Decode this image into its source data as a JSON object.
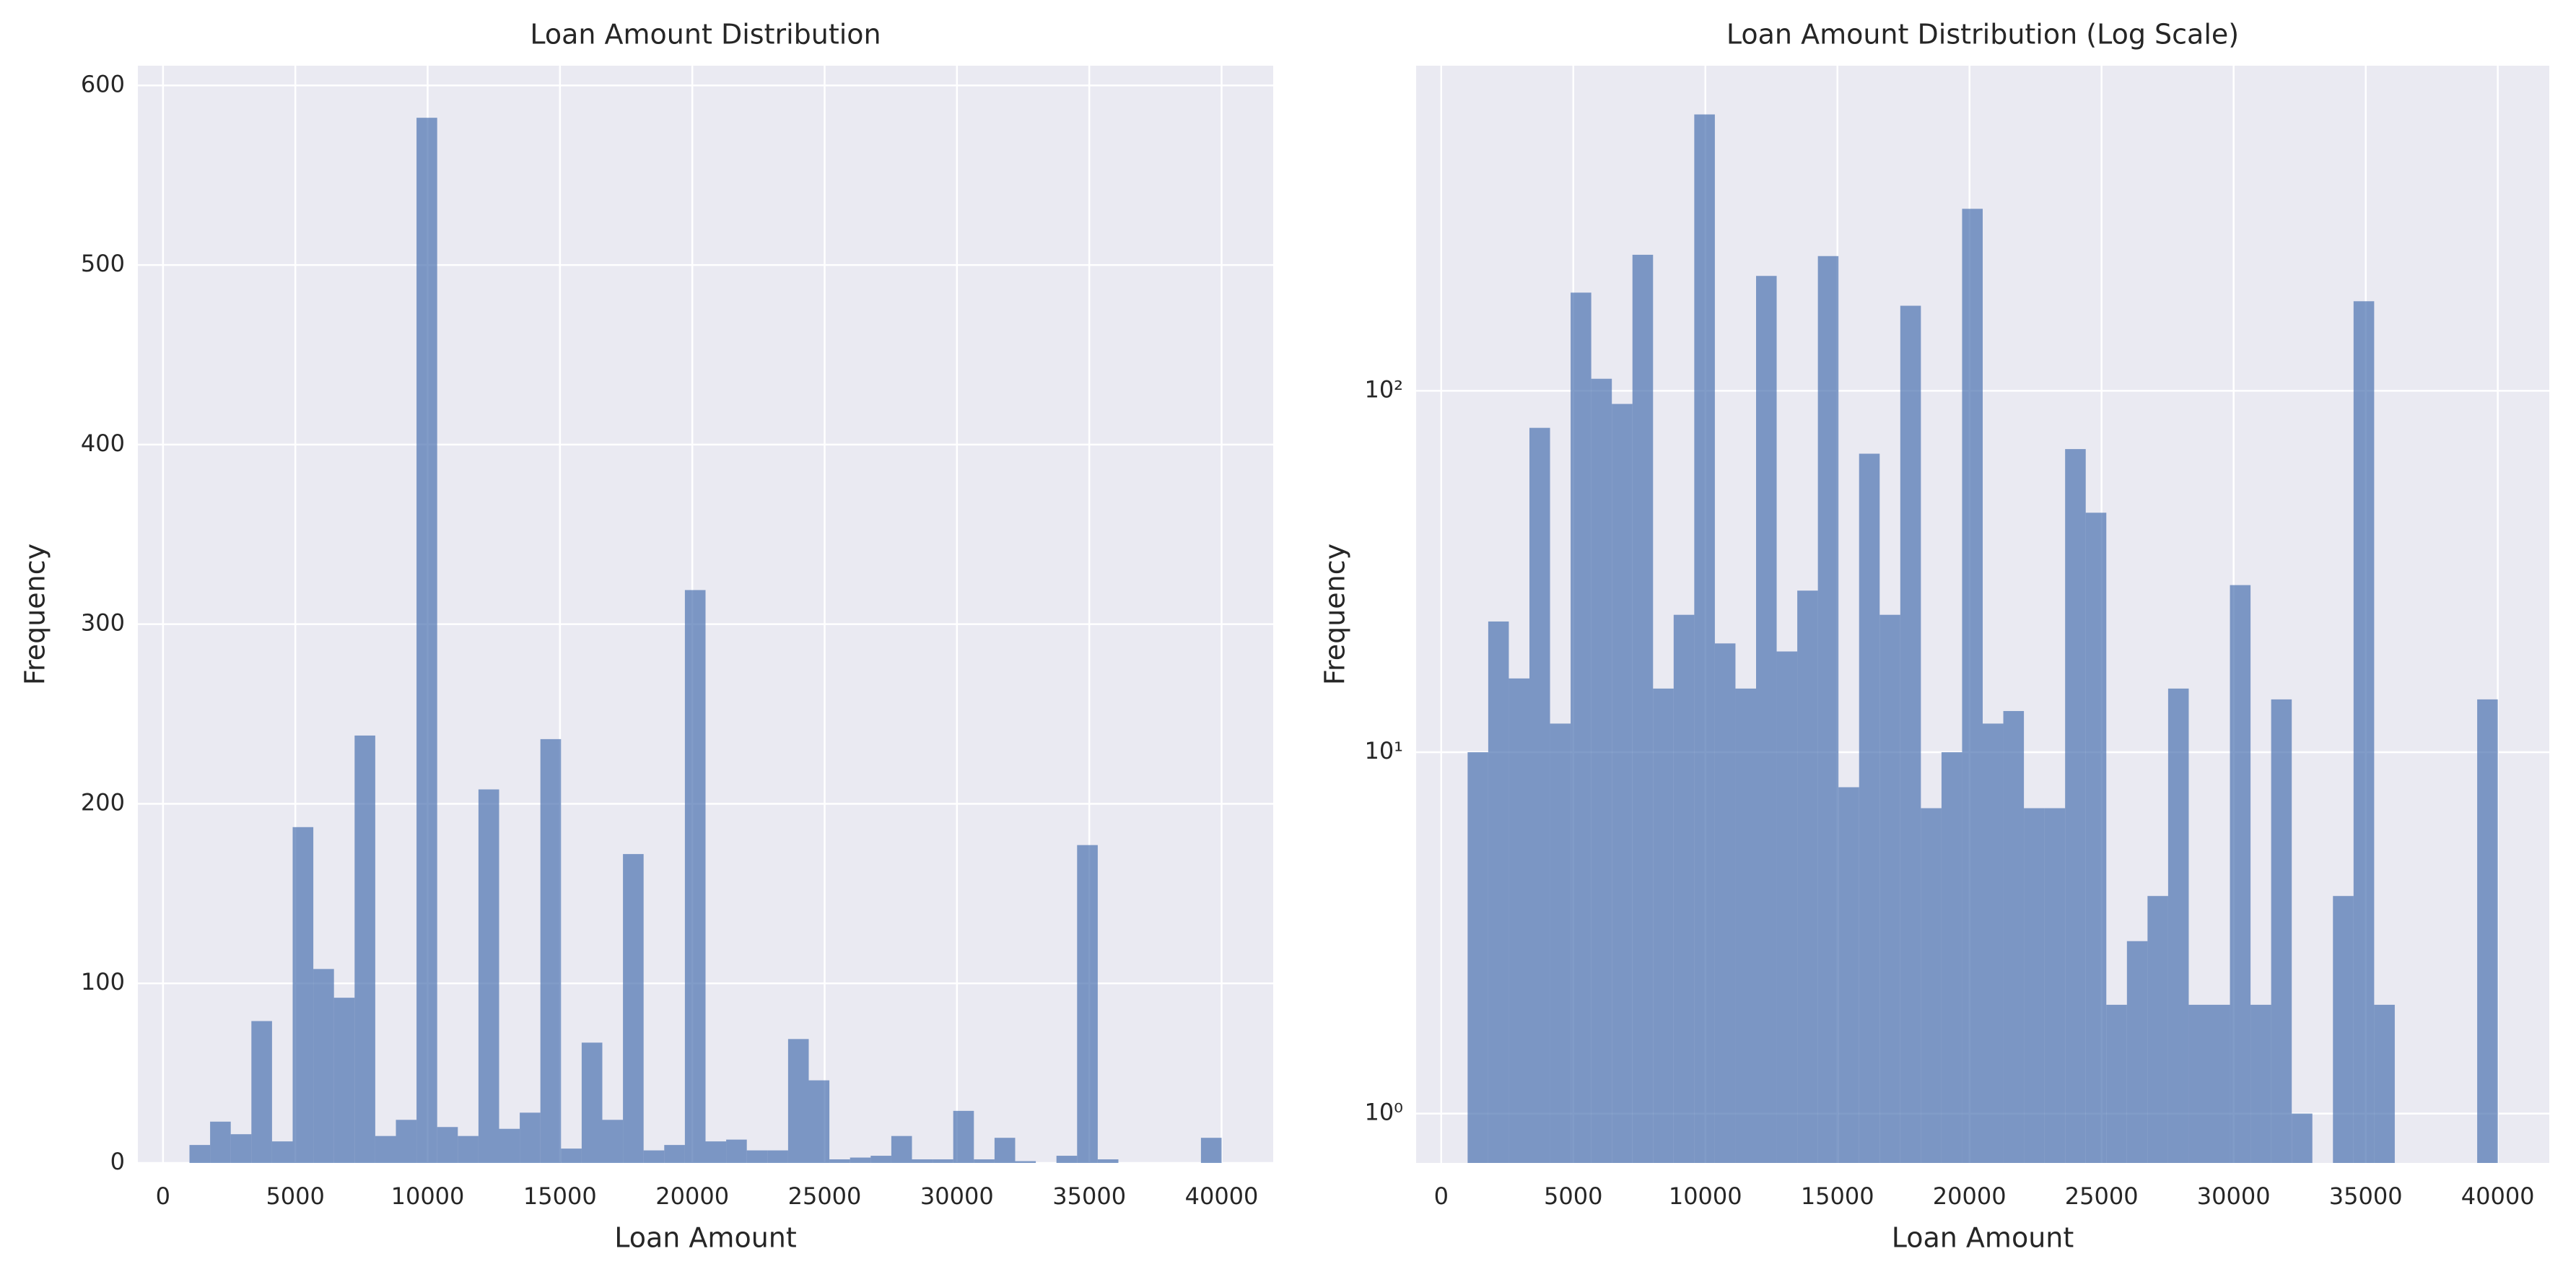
{
  "chart_data": [
    {
      "type": "histogram",
      "title": "Loan Amount Distribution",
      "x_label": "Loan Amount",
      "y_label": "Frequency",
      "bins": [
        1000,
        1780,
        2560,
        3340,
        4120,
        4900,
        5680,
        6460,
        7240,
        8020,
        8800,
        9580,
        10360,
        11140,
        11920,
        12700,
        13480,
        14260,
        15040,
        15820,
        16600,
        17380,
        18160,
        18940,
        19720,
        20500,
        21280,
        22060,
        22840,
        23620,
        24400,
        25180,
        25960,
        26740,
        27520,
        28300,
        29080,
        29860,
        30640,
        31420,
        32200,
        32980,
        33760,
        34540,
        35320,
        36100,
        36880,
        37660,
        38440,
        39220,
        40000
      ],
      "values": [
        10,
        23,
        16,
        79,
        12,
        187,
        108,
        92,
        238,
        15,
        24,
        582,
        20,
        15,
        208,
        19,
        28,
        236,
        8,
        67,
        24,
        172,
        7,
        10,
        319,
        12,
        13,
        7,
        7,
        69,
        46,
        2,
        3,
        4,
        15,
        2,
        2,
        29,
        2,
        14,
        1,
        0,
        4,
        177,
        2,
        0,
        0,
        0,
        0,
        14
      ],
      "color": "#4c72b0",
      "opacity": 0.7,
      "log_y": false,
      "grid": true,
      "xlim": [
        -950,
        41950
      ],
      "ylim": [
        0,
        611
      ],
      "xticks": [
        0,
        5000,
        10000,
        15000,
        20000,
        25000,
        30000,
        35000,
        40000
      ],
      "yticks": [
        0,
        100,
        200,
        300,
        400,
        500,
        600
      ]
    },
    {
      "type": "histogram",
      "title": "Loan Amount Distribution (Log Scale)",
      "x_label": "Loan Amount",
      "y_label": "Frequency",
      "bins": [
        1000,
        1780,
        2560,
        3340,
        4120,
        4900,
        5680,
        6460,
        7240,
        8020,
        8800,
        9580,
        10360,
        11140,
        11920,
        12700,
        13480,
        14260,
        15040,
        15820,
        16600,
        17380,
        18160,
        18940,
        19720,
        20500,
        21280,
        22060,
        22840,
        23620,
        24400,
        25180,
        25960,
        26740,
        27520,
        28300,
        29080,
        29860,
        30640,
        31420,
        32200,
        32980,
        33760,
        34540,
        35320,
        36100,
        36880,
        37660,
        38440,
        39220,
        40000
      ],
      "values": [
        10,
        23,
        16,
        79,
        12,
        187,
        108,
        92,
        238,
        15,
        24,
        582,
        20,
        15,
        208,
        19,
        28,
        236,
        8,
        67,
        24,
        172,
        7,
        10,
        319,
        12,
        13,
        7,
        7,
        69,
        46,
        2,
        3,
        4,
        15,
        2,
        2,
        29,
        2,
        14,
        1,
        0,
        4,
        177,
        2,
        0,
        0,
        0,
        0,
        14
      ],
      "color": "#4c72b0",
      "opacity": 0.7,
      "log_y": true,
      "grid": true,
      "xlim": [
        -950,
        41950
      ],
      "ylim": [
        0.73,
        794
      ],
      "xticks": [
        0,
        5000,
        10000,
        15000,
        20000,
        25000,
        30000,
        35000,
        40000
      ],
      "yticks": [
        {
          "value": 1,
          "label": "10⁰"
        },
        {
          "value": 10,
          "label": "10¹"
        },
        {
          "value": 100,
          "label": "10²"
        }
      ]
    }
  ]
}
